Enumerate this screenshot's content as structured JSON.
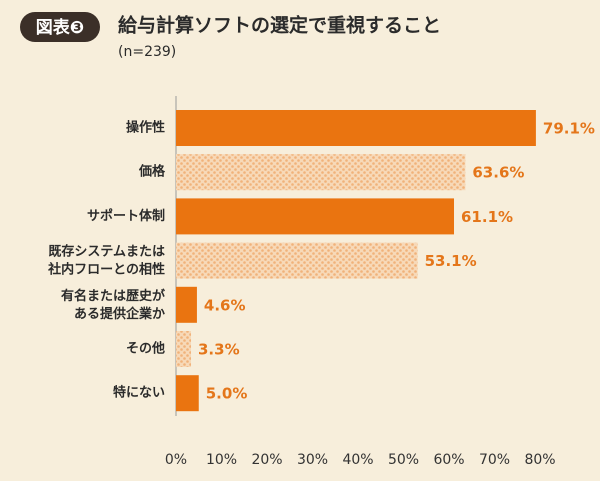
{
  "badge": "図表❸",
  "chart_data": {
    "type": "bar",
    "orientation": "horizontal",
    "title": "給与計算ソフトの選定で重視すること",
    "subtitle": "(n=239)",
    "categories": [
      "操作性",
      "価格",
      "サポート体制",
      "既存システムまたは\n社内フローとの相性",
      "有名または歴史が\nある提供企業か",
      "その他",
      "特にない"
    ],
    "values": [
      79.1,
      63.6,
      61.1,
      53.1,
      4.6,
      3.3,
      5.0
    ],
    "value_labels": [
      "79.1%",
      "63.6%",
      "61.1%",
      "53.1%",
      "4.6%",
      "3.3%",
      "5.0%"
    ],
    "styles": [
      "solid",
      "dotted",
      "solid",
      "dotted",
      "solid",
      "dotted",
      "solid"
    ],
    "color": "#ea7410",
    "xlim": [
      0,
      80
    ],
    "xticks": [
      {
        "value": 0,
        "label": "0%"
      },
      {
        "value": 10,
        "label": "10%"
      },
      {
        "value": 20,
        "label": "20%"
      },
      {
        "value": 30,
        "label": "30%"
      },
      {
        "value": 40,
        "label": "40%"
      },
      {
        "value": 50,
        "label": "50%"
      },
      {
        "value": 60,
        "label": "60%"
      },
      {
        "value": 70,
        "label": "70%"
      },
      {
        "value": 80,
        "label": "80%"
      }
    ]
  }
}
